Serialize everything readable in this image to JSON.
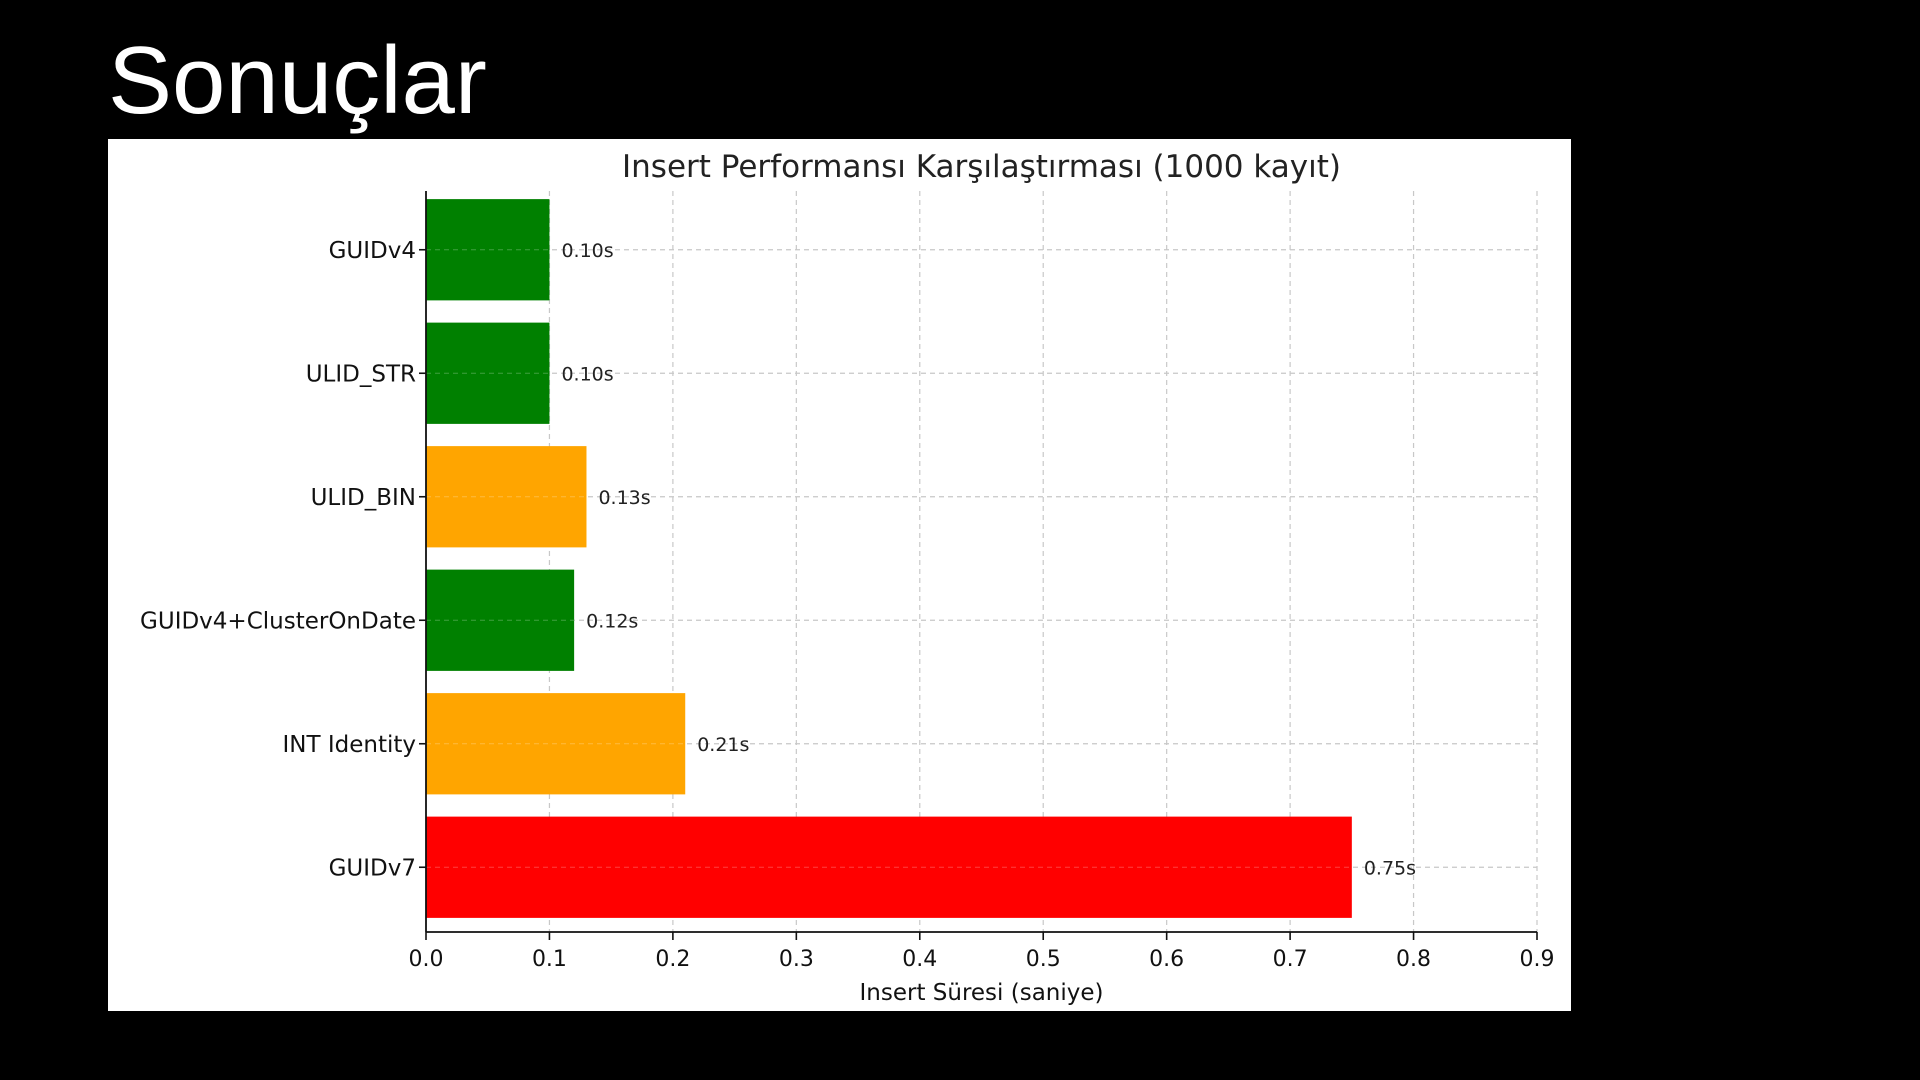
{
  "slide": {
    "title": "Sonuçlar"
  },
  "chart_data": {
    "type": "bar",
    "orientation": "horizontal",
    "title": "Insert Performansı Karşılaştırması (1000 kayıt)",
    "xlabel": "Insert Süresi (saniye)",
    "ylabel": "",
    "xlim": [
      0,
      0.9
    ],
    "xticks": [
      0,
      0.1,
      0.2,
      0.3,
      0.4,
      0.5,
      0.6,
      0.7,
      0.8,
      0.9
    ],
    "xtick_labels": [
      "0.0",
      "0.1",
      "0.2",
      "0.3",
      "0.4",
      "0.5",
      "0.6",
      "0.7",
      "0.8",
      "0.9"
    ],
    "grid": true,
    "grid_style": "dashed",
    "categories": [
      "GUIDv4",
      "ULID_STR",
      "ULID_BIN",
      "GUIDv4+ClusterOnDate",
      "INT Identity",
      "GUIDv7"
    ],
    "values": [
      0.1,
      0.1,
      0.13,
      0.12,
      0.21,
      0.75
    ],
    "value_labels": [
      "0.10s",
      "0.10s",
      "0.13s",
      "0.12s",
      "0.21s",
      "0.75s"
    ],
    "bar_colors": [
      "#008000",
      "#008000",
      "#FFA500",
      "#008000",
      "#FFA500",
      "#FF0000"
    ]
  }
}
